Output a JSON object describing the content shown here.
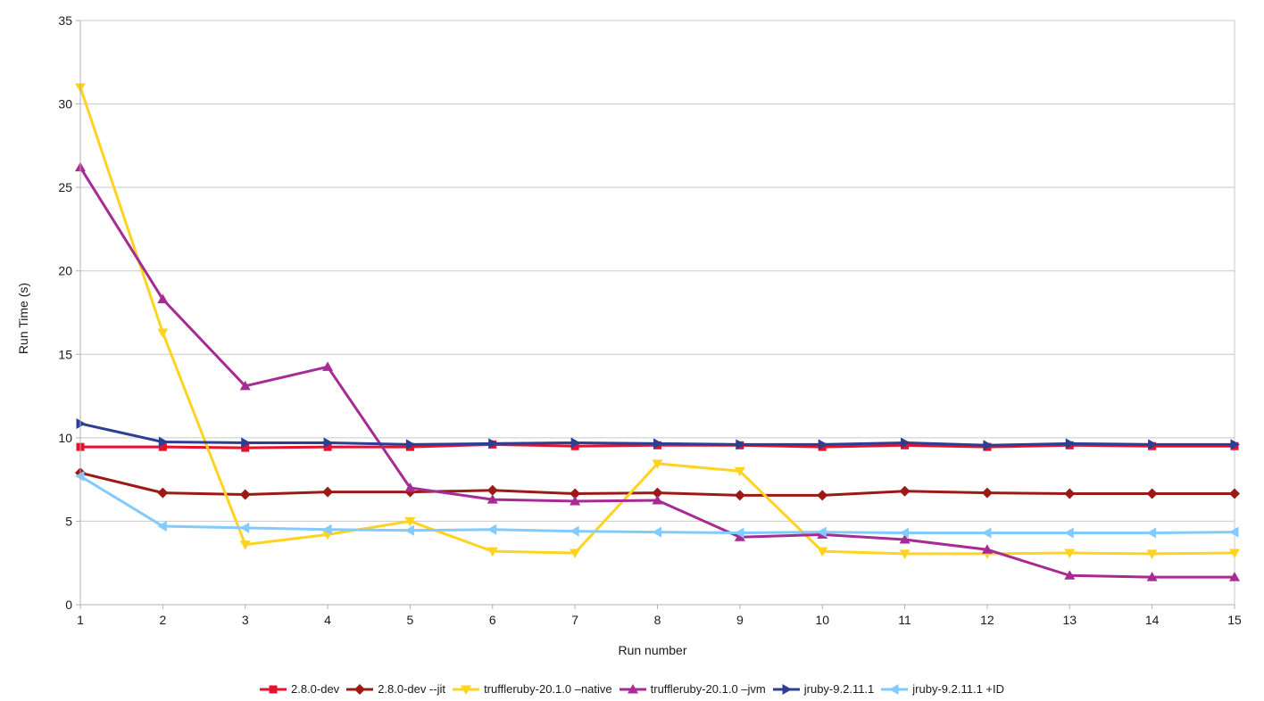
{
  "chart_data": {
    "type": "line",
    "title": "",
    "xlabel": "Run number",
    "ylabel": "Run Time (s)",
    "x": [
      1,
      2,
      3,
      4,
      5,
      6,
      7,
      8,
      9,
      10,
      11,
      12,
      13,
      14,
      15
    ],
    "ylim": [
      0,
      35
    ],
    "y_tick_step": 5,
    "grid": "horizontal",
    "legend_position": "bottom",
    "series": [
      {
        "name": "2.8.0-dev",
        "color": "#e8112d",
        "marker": "square",
        "values": [
          9.45,
          9.45,
          9.4,
          9.45,
          9.45,
          9.6,
          9.5,
          9.55,
          9.55,
          9.45,
          9.55,
          9.45,
          9.55,
          9.5,
          9.5
        ]
      },
      {
        "name": "2.8.0-dev --jit",
        "color": "#9c1a16",
        "marker": "diamond",
        "values": [
          7.9,
          6.7,
          6.6,
          6.75,
          6.75,
          6.85,
          6.65,
          6.7,
          6.55,
          6.55,
          6.8,
          6.7,
          6.65,
          6.65,
          6.65
        ]
      },
      {
        "name": "truffleruby-20.1.0 –native",
        "color": "#ffd320",
        "marker": "triangle-down",
        "values": [
          31,
          16.3,
          3.6,
          4.2,
          5.0,
          3.2,
          3.1,
          8.45,
          8.0,
          3.2,
          3.05,
          3.05,
          3.1,
          3.05,
          3.1
        ]
      },
      {
        "name": "truffleruby-20.1.0 –jvm",
        "color": "#a62b93",
        "marker": "triangle-up",
        "values": [
          26.2,
          18.3,
          13.1,
          14.25,
          7.0,
          6.3,
          6.2,
          6.25,
          4.05,
          4.2,
          3.9,
          3.3,
          1.75,
          1.65,
          1.65
        ]
      },
      {
        "name": "jruby-9.2.11.1",
        "color": "#2c3f94",
        "marker": "triangle-right",
        "values": [
          10.85,
          9.75,
          9.7,
          9.7,
          9.6,
          9.65,
          9.7,
          9.65,
          9.6,
          9.6,
          9.7,
          9.55,
          9.65,
          9.6,
          9.6
        ]
      },
      {
        "name": "jruby-9.2.11.1 +ID",
        "color": "#83caff",
        "marker": "triangle-left",
        "values": [
          7.7,
          4.7,
          4.6,
          4.5,
          4.45,
          4.5,
          4.4,
          4.35,
          4.3,
          4.35,
          4.3,
          4.3,
          4.3,
          4.3,
          4.35
        ]
      }
    ],
    "axis_colors": {
      "grid": "#c9c9c9",
      "axis": "#b0b0b0",
      "text": "#1a1a1a"
    }
  }
}
